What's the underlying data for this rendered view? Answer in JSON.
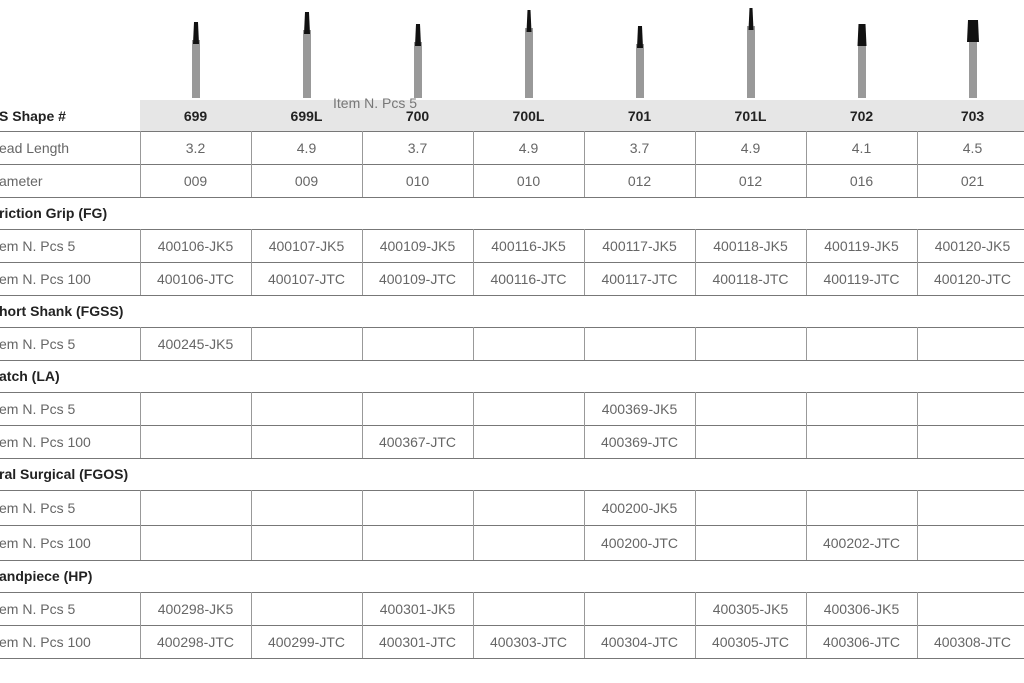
{
  "header_label": "S Shape #",
  "overlay_text": "Item N. Pcs 5",
  "columns": [
    "699",
    "699L",
    "700",
    "700L",
    "701",
    "701L",
    "702",
    "703"
  ],
  "specs": [
    {
      "label": "ead Length",
      "cells": [
        "3.2",
        "4.9",
        "3.7",
        "4.9",
        "3.7",
        "4.9",
        "4.1",
        "4.5"
      ]
    },
    {
      "label": "ameter",
      "cells": [
        "009",
        "009",
        "010",
        "010",
        "012",
        "012",
        "016",
        "021"
      ]
    }
  ],
  "sections": [
    {
      "title": "riction Grip (FG)",
      "rows": [
        {
          "label": "em N. Pcs 5",
          "cells": [
            "400106-JK5",
            "400107-JK5",
            "400109-JK5",
            "400116-JK5",
            "400117-JK5",
            "400118-JK5",
            "400119-JK5",
            "400120-JK5"
          ]
        },
        {
          "label": "em N. Pcs 100",
          "cells": [
            "400106-JTC",
            "400107-JTC",
            "400109-JTC",
            "400116-JTC",
            "400117-JTC",
            "400118-JTC",
            "400119-JTC",
            "400120-JTC"
          ]
        }
      ]
    },
    {
      "title": "hort Shank (FGSS)",
      "rows": [
        {
          "label": "em N. Pcs 5",
          "cells": [
            "400245-JK5",
            null,
            null,
            null,
            null,
            null,
            null,
            null
          ]
        }
      ]
    },
    {
      "title": "atch (LA)",
      "rows": [
        {
          "label": "em N. Pcs 5",
          "cells": [
            null,
            null,
            null,
            null,
            "400369-JK5",
            null,
            null,
            null
          ]
        },
        {
          "label": "em N. Pcs 100",
          "cells": [
            null,
            null,
            "400367-JTC",
            null,
            "400369-JTC",
            null,
            null,
            null
          ]
        }
      ]
    },
    {
      "title": "ral Surgical (FGOS)",
      "rows": [
        {
          "label": "em N. Pcs 5",
          "cells": [
            null,
            null,
            null,
            null,
            "400200-JK5",
            null,
            null,
            null
          ]
        },
        {
          "label": "em N. Pcs 100",
          "cells": [
            null,
            null,
            null,
            null,
            "400200-JTC",
            null,
            "400202-JTC",
            null
          ]
        }
      ]
    },
    {
      "title": "andpiece (HP)",
      "rows": [
        {
          "label": "em N. Pcs 5",
          "cells": [
            "400298-JK5",
            null,
            "400301-JK5",
            null,
            null,
            "400305-JK5",
            "400306-JK5",
            null
          ]
        },
        {
          "label": "em N. Pcs 100",
          "cells": [
            "400298-JTC",
            "400299-JTC",
            "400301-JTC",
            "400303-JTC",
            "400304-JTC",
            "400305-JTC",
            "400306-JTC",
            "400308-JTC"
          ]
        }
      ]
    }
  ]
}
